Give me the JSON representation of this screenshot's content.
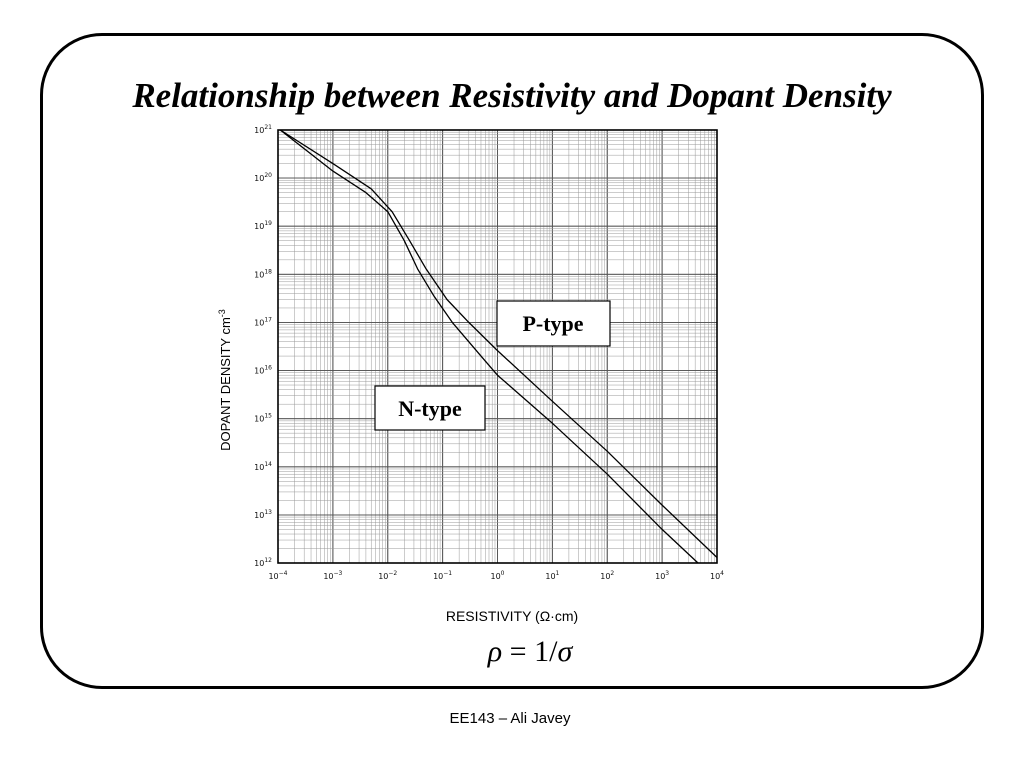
{
  "slide": {
    "title": "Relationship between Resistivity and Dopant Density",
    "formula": {
      "lhs": "ρ",
      "eq": " = 1/",
      "rhs": "σ"
    },
    "footer": "EE143 – Ali Javey"
  },
  "chart_data": {
    "type": "line",
    "xlabel": "RESISTIVITY  (Ω·cm)",
    "ylabel": "DOPANT DENSITY cm",
    "ylabel_sup": "-3",
    "x_scale": "log",
    "y_scale": "log",
    "xlim": [
      0.0001,
      10000
    ],
    "ylim": [
      1000000000000.0,
      1e+21
    ],
    "x_ticks": [
      {
        "base": "10",
        "exp": "−4"
      },
      {
        "base": "10",
        "exp": "−3"
      },
      {
        "base": "10",
        "exp": "−2"
      },
      {
        "base": "10",
        "exp": "−1"
      },
      {
        "base": "10",
        "exp": "0"
      },
      {
        "base": "10",
        "exp": "1"
      },
      {
        "base": "10",
        "exp": "2"
      },
      {
        "base": "10",
        "exp": "3"
      },
      {
        "base": "10",
        "exp": "4"
      }
    ],
    "y_ticks": [
      {
        "base": "10",
        "exp": "12"
      },
      {
        "base": "10",
        "exp": "13"
      },
      {
        "base": "10",
        "exp": "14"
      },
      {
        "base": "10",
        "exp": "15"
      },
      {
        "base": "10",
        "exp": "16"
      },
      {
        "base": "10",
        "exp": "17"
      },
      {
        "base": "10",
        "exp": "18"
      },
      {
        "base": "10",
        "exp": "19"
      },
      {
        "base": "10",
        "exp": "20"
      },
      {
        "base": "10",
        "exp": "21"
      }
    ],
    "grid": true,
    "series": [
      {
        "name": "P-type",
        "x": [
          0.00011,
          0.001,
          0.005,
          0.012,
          0.025,
          0.05,
          0.12,
          0.3,
          1,
          10,
          100,
          1000,
          10000
        ],
        "y": [
          1e+21,
          2e+20,
          6e+19,
          2e+19,
          5e+18,
          1.3e+18,
          3e+17,
          1e+17,
          2.6e+16,
          2300000000000000.0,
          210000000000000.0,
          16000000000000.0,
          1300000000000.0
        ]
      },
      {
        "name": "N-type",
        "x": [
          0.00011,
          0.001,
          0.004,
          0.01,
          0.02,
          0.035,
          0.07,
          0.15,
          0.5,
          1,
          10,
          100,
          1000,
          4500
        ],
        "y": [
          1e+21,
          1.4e+20,
          5e+19,
          2e+19,
          5e+18,
          1.3e+18,
          3.5e+17,
          1e+17,
          2e+16,
          8000000000000000.0,
          800000000000000.0,
          70000000000000.0,
          5000000000000.0,
          1000000000000.0
        ]
      }
    ]
  }
}
